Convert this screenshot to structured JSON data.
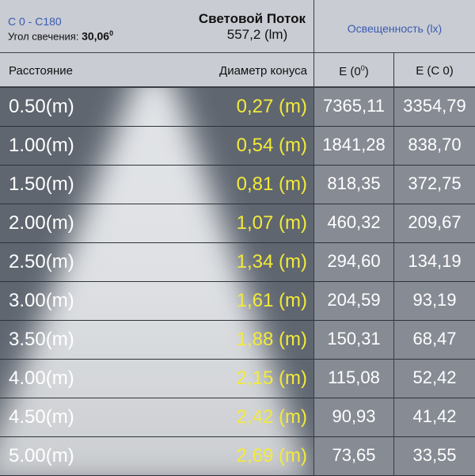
{
  "header": {
    "planes": "C 0 - C180",
    "angle_label": "Угол свечения:",
    "angle_value": "30,06",
    "angle_unit": "0",
    "flux_title": "Световой Поток",
    "flux_value": "557,2 (lm)",
    "illuminance_title": "Освещенность (lx)"
  },
  "columns": {
    "distance": "Расстояние",
    "diameter": "Диаметр конуса",
    "e0": "E (0",
    "e0_sup": "0",
    "e0_end": ")",
    "ec0": "E (C 0)"
  },
  "colors": {
    "diameter_text": "#f2ea3a",
    "header_blue": "#3a5bb0",
    "header_bg": "#c9ccd3"
  },
  "rows": [
    {
      "distance": "0.50(m)",
      "diameter": "0,27 (m)",
      "e0": "7365,11",
      "ec0": "3354,79"
    },
    {
      "distance": "1.00(m)",
      "diameter": "0,54 (m)",
      "e0": "1841,28",
      "ec0": "838,70"
    },
    {
      "distance": "1.50(m)",
      "diameter": "0,81 (m)",
      "e0": "818,35",
      "ec0": "372,75"
    },
    {
      "distance": "2.00(m)",
      "diameter": "1,07 (m)",
      "e0": "460,32",
      "ec0": "209,67"
    },
    {
      "distance": "2.50(m)",
      "diameter": "1,34 (m)",
      "e0": "294,60",
      "ec0": "134,19"
    },
    {
      "distance": "3.00(m)",
      "diameter": "1,61 (m)",
      "e0": "204,59",
      "ec0": "93,19"
    },
    {
      "distance": "3.50(m)",
      "diameter": "1,88 (m)",
      "e0": "150,31",
      "ec0": "68,47"
    },
    {
      "distance": "4.00(m)",
      "diameter": "2,15 (m)",
      "e0": "115,08",
      "ec0": "52,42"
    },
    {
      "distance": "4.50(m)",
      "diameter": "2,42 (m)",
      "e0": "90,93",
      "ec0": "41,42"
    },
    {
      "distance": "5.00(m)",
      "diameter": "2,69 (m)",
      "e0": "73,65",
      "ec0": "33,55"
    }
  ]
}
